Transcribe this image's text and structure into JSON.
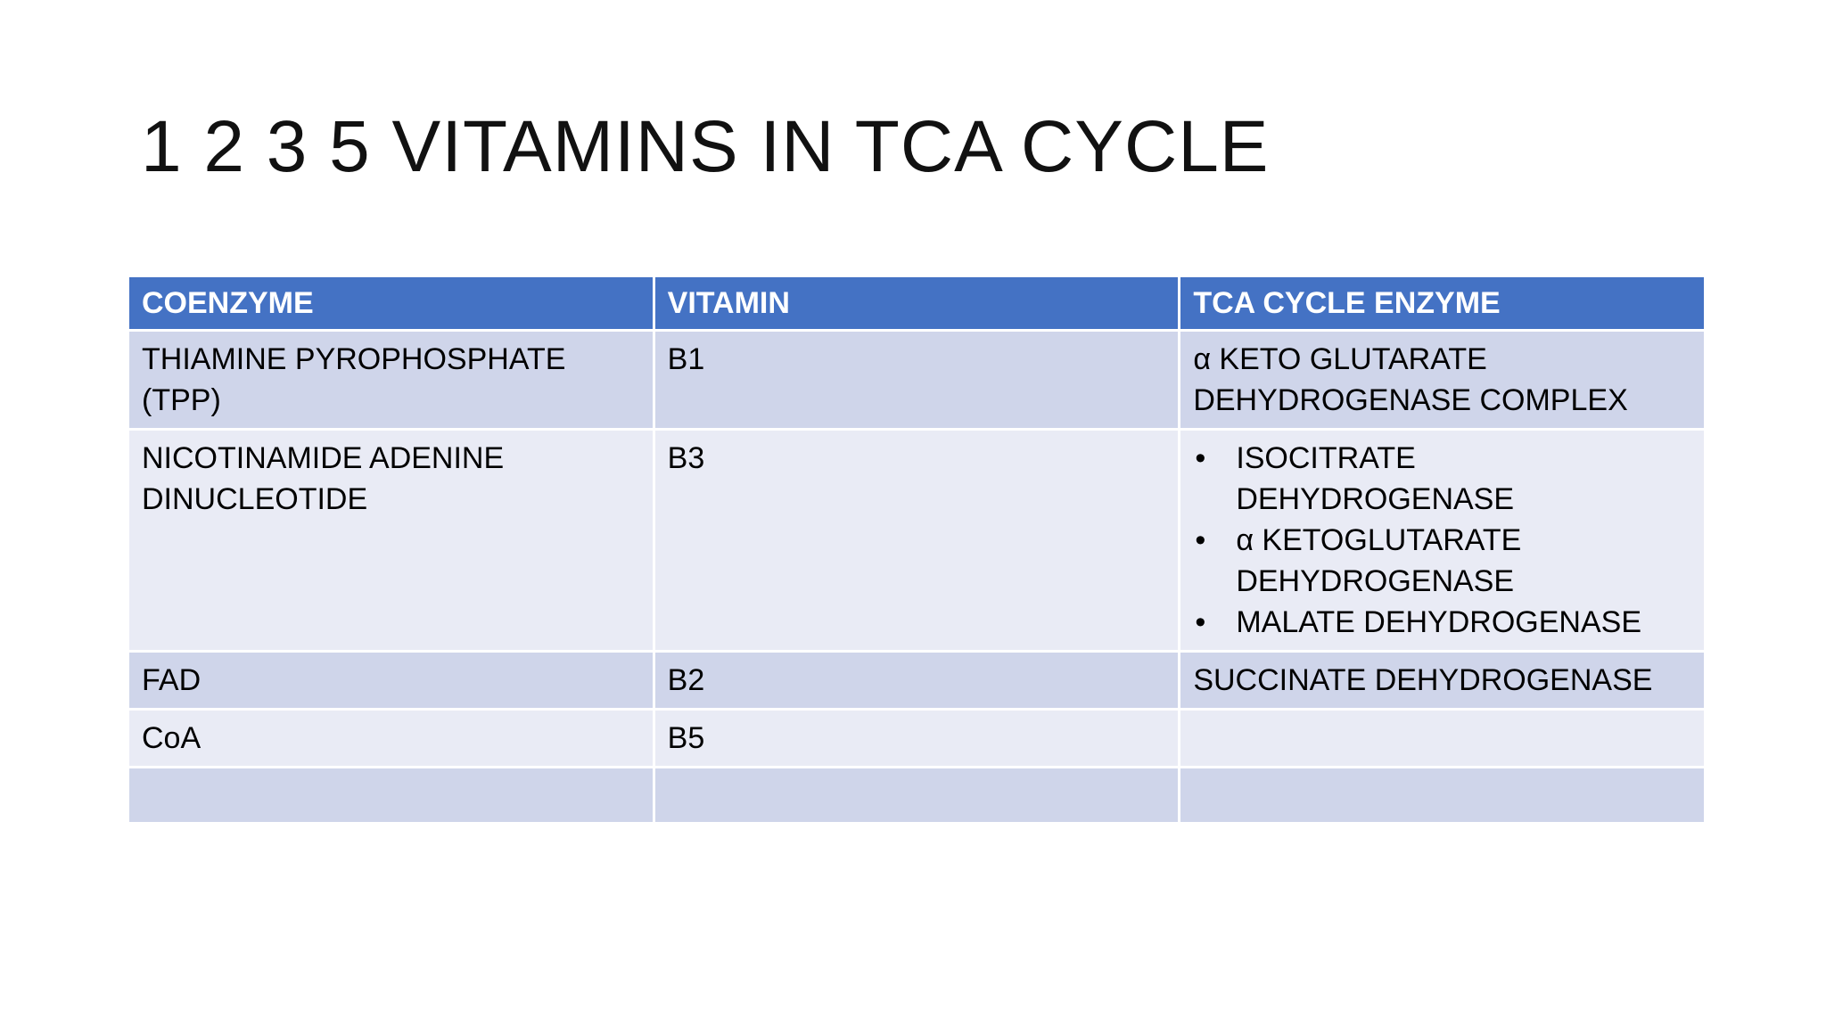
{
  "slide": {
    "title": "1 2 3 5 VITAMINS IN TCA CYCLE"
  },
  "table": {
    "headers": [
      "COENZYME",
      "VITAMIN",
      "TCA CYCLE ENZYME"
    ],
    "rows": [
      {
        "coenzyme": "THIAMINE PYROPHOSPHATE (TPP)",
        "vitamin": "B1",
        "enzyme": "α KETO GLUTARATE DEHYDROGENASE COMPLEX"
      },
      {
        "coenzyme": "NICOTINAMIDE ADENINE DINUCLEOTIDE",
        "vitamin": "B3",
        "enzymes": [
          "ISOCITRATE DEHYDROGENASE",
          "α KETOGLUTARATE DEHYDROGENASE",
          "MALATE DEHYDROGENASE"
        ]
      },
      {
        "coenzyme": "FAD",
        "vitamin": "B2",
        "enzyme": "SUCCINATE DEHYDROGENASE"
      },
      {
        "coenzyme": "CoA",
        "vitamin": "B5",
        "enzyme": ""
      },
      {
        "coenzyme": "",
        "vitamin": "",
        "enzyme": ""
      }
    ]
  },
  "bullet_symbol": "•",
  "colors": {
    "header_bg": "#4472c4",
    "band_dark": "#cfd5ea",
    "band_light": "#e9ebf5"
  }
}
